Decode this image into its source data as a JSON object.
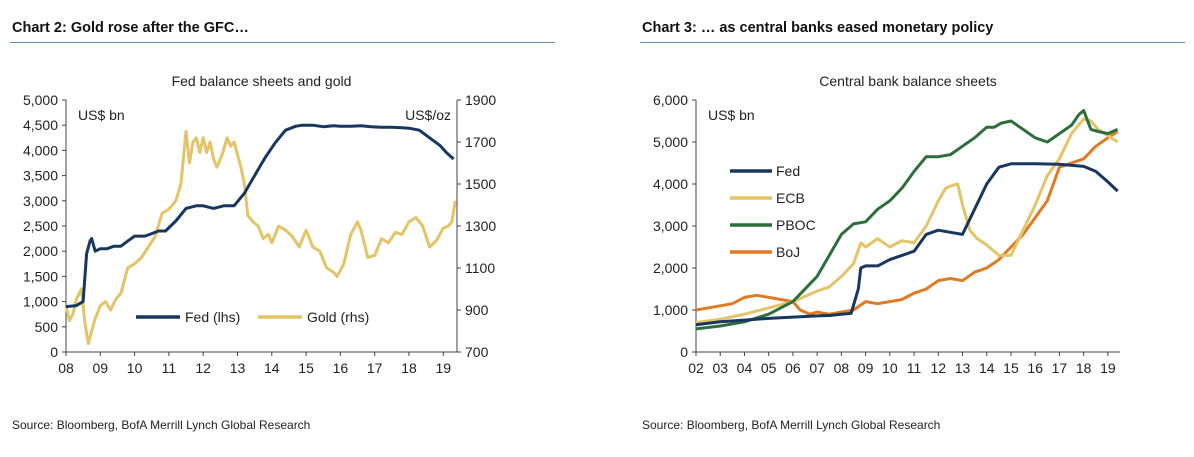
{
  "panels": [
    {
      "title": "Chart 2: Gold rose after the GFC…",
      "source": "Source: Bloomberg, BofA Merrill Lynch Global Research"
    },
    {
      "title": "Chart 3: … as central banks eased monetary policy",
      "source": "Source: Bloomberg, BofA Merrill Lynch Global Research"
    }
  ],
  "chart_data": [
    {
      "type": "line",
      "title": "Fed balance sheets and gold",
      "y_unit_left": "US$ bn",
      "y_unit_right": "US$/oz",
      "xlim": [
        2008,
        2019.4
      ],
      "x_ticks": [
        "08",
        "09",
        "10",
        "11",
        "12",
        "13",
        "14",
        "15",
        "16",
        "17",
        "18",
        "19"
      ],
      "ylim_left": [
        0,
        5000
      ],
      "y_ticks_left": [
        "0",
        "500",
        "1,000",
        "1,500",
        "2,000",
        "2,500",
        "3,000",
        "3,500",
        "4,000",
        "4,500",
        "5,000"
      ],
      "ylim_right": [
        700,
        1900
      ],
      "y_ticks_right": [
        "700",
        "900",
        "1100",
        "1300",
        "1500",
        "1700",
        "1900"
      ],
      "grid": false,
      "legend_position": "bottom-right",
      "series": [
        {
          "name": "Fed (lhs)",
          "axis": "left",
          "color": "#17375e",
          "x": [
            2008.0,
            2008.3,
            2008.5,
            2008.6,
            2008.7,
            2008.75,
            2008.85,
            2009.0,
            2009.2,
            2009.4,
            2009.6,
            2009.8,
            2010.0,
            2010.3,
            2010.5,
            2010.7,
            2010.9,
            2011.2,
            2011.5,
            2011.8,
            2012.0,
            2012.3,
            2012.6,
            2012.9,
            2013.2,
            2013.5,
            2013.8,
            2014.1,
            2014.4,
            2014.7,
            2014.9,
            2015.2,
            2015.5,
            2015.8,
            2016.0,
            2016.3,
            2016.6,
            2016.9,
            2017.2,
            2017.5,
            2017.8,
            2018.0,
            2018.3,
            2018.6,
            2018.9,
            2019.1,
            2019.3
          ],
          "values": [
            900,
            920,
            1000,
            1950,
            2200,
            2250,
            2000,
            2050,
            2050,
            2100,
            2100,
            2200,
            2300,
            2300,
            2350,
            2400,
            2400,
            2600,
            2850,
            2900,
            2900,
            2850,
            2900,
            2900,
            3150,
            3500,
            3850,
            4150,
            4400,
            4480,
            4500,
            4500,
            4470,
            4490,
            4480,
            4480,
            4490,
            4470,
            4460,
            4460,
            4450,
            4440,
            4400,
            4250,
            4100,
            3950,
            3830
          ]
        },
        {
          "name": "Gold (rhs)",
          "axis": "right",
          "color": "#e3c466",
          "x": [
            2008.0,
            2008.1,
            2008.2,
            2008.3,
            2008.45,
            2008.55,
            2008.65,
            2008.75,
            2008.85,
            2009.0,
            2009.15,
            2009.3,
            2009.45,
            2009.6,
            2009.8,
            2010.0,
            2010.2,
            2010.4,
            2010.6,
            2010.8,
            2011.0,
            2011.2,
            2011.35,
            2011.5,
            2011.6,
            2011.7,
            2011.8,
            2011.9,
            2012.0,
            2012.1,
            2012.2,
            2012.3,
            2012.4,
            2012.55,
            2012.7,
            2012.8,
            2012.9,
            2013.0,
            2013.1,
            2013.2,
            2013.3,
            2013.45,
            2013.6,
            2013.75,
            2013.9,
            2014.0,
            2014.2,
            2014.4,
            2014.6,
            2014.8,
            2015.0,
            2015.2,
            2015.4,
            2015.6,
            2015.8,
            2015.9,
            2016.1,
            2016.3,
            2016.5,
            2016.6,
            2016.8,
            2017.0,
            2017.2,
            2017.4,
            2017.6,
            2017.8,
            2018.0,
            2018.2,
            2018.4,
            2018.6,
            2018.8,
            2019.0,
            2019.15,
            2019.25,
            2019.35
          ],
          "values": [
            920,
            850,
            880,
            950,
            1000,
            840,
            740,
            800,
            860,
            920,
            940,
            900,
            950,
            980,
            1100,
            1120,
            1150,
            1200,
            1250,
            1360,
            1380,
            1420,
            1500,
            1750,
            1600,
            1700,
            1720,
            1650,
            1720,
            1650,
            1700,
            1620,
            1580,
            1640,
            1720,
            1680,
            1700,
            1640,
            1580,
            1500,
            1350,
            1320,
            1300,
            1240,
            1260,
            1220,
            1300,
            1280,
            1250,
            1200,
            1280,
            1200,
            1180,
            1100,
            1080,
            1060,
            1120,
            1260,
            1320,
            1280,
            1150,
            1160,
            1240,
            1220,
            1270,
            1260,
            1320,
            1340,
            1300,
            1200,
            1230,
            1290,
            1300,
            1320,
            1420
          ]
        }
      ]
    },
    {
      "type": "line",
      "title": "Central bank balance sheets",
      "y_unit_left": "US$ bn",
      "xlim": [
        2002,
        2019.5
      ],
      "x_ticks": [
        "02",
        "03",
        "04",
        "05",
        "06",
        "07",
        "08",
        "09",
        "10",
        "11",
        "12",
        "13",
        "14",
        "15",
        "16",
        "17",
        "18",
        "19"
      ],
      "ylim": [
        0,
        6000
      ],
      "y_ticks": [
        "0",
        "1,000",
        "2,000",
        "3,000",
        "4,000",
        "5,000",
        "6,000"
      ],
      "grid": false,
      "legend_position": "left",
      "series": [
        {
          "name": "Fed",
          "color": "#17375e",
          "x": [
            2002.0,
            2003.0,
            2004.0,
            2005.0,
            2006.0,
            2007.0,
            2007.5,
            2008.0,
            2008.4,
            2008.7,
            2008.8,
            2009.0,
            2009.5,
            2010.0,
            2010.5,
            2011.0,
            2011.5,
            2012.0,
            2012.5,
            2013.0,
            2013.5,
            2014.0,
            2014.5,
            2015.0,
            2016.0,
            2017.0,
            2018.0,
            2018.5,
            2019.0,
            2019.4
          ],
          "values": [
            650,
            720,
            760,
            800,
            830,
            860,
            870,
            900,
            920,
            1500,
            2000,
            2050,
            2050,
            2200,
            2300,
            2400,
            2800,
            2900,
            2850,
            2800,
            3400,
            4000,
            4400,
            4480,
            4480,
            4470,
            4420,
            4300,
            4050,
            3830
          ]
        },
        {
          "name": "ECB",
          "color": "#e3c466",
          "x": [
            2002.0,
            2003.0,
            2004.0,
            2005.0,
            2006.0,
            2007.0,
            2007.5,
            2008.0,
            2008.5,
            2008.8,
            2009.0,
            2009.5,
            2010.0,
            2010.5,
            2011.0,
            2011.5,
            2012.0,
            2012.3,
            2012.5,
            2012.8,
            2013.0,
            2013.3,
            2013.6,
            2014.0,
            2014.5,
            2015.0,
            2015.5,
            2016.0,
            2016.5,
            2017.0,
            2017.5,
            2018.0,
            2018.3,
            2018.6,
            2019.0,
            2019.4
          ],
          "values": [
            700,
            780,
            900,
            1050,
            1200,
            1450,
            1550,
            1800,
            2100,
            2600,
            2500,
            2700,
            2500,
            2650,
            2600,
            3000,
            3600,
            3900,
            3950,
            4000,
            3500,
            2900,
            2700,
            2550,
            2300,
            2300,
            2900,
            3500,
            4200,
            4600,
            5200,
            5550,
            5500,
            5300,
            5150,
            5000
          ]
        },
        {
          "name": "PBOC",
          "color": "#2d6e3c",
          "x": [
            2002.0,
            2003.0,
            2004.0,
            2005.0,
            2006.0,
            2007.0,
            2007.5,
            2008.0,
            2008.5,
            2009.0,
            2009.5,
            2010.0,
            2010.5,
            2011.0,
            2011.5,
            2012.0,
            2012.5,
            2013.0,
            2013.5,
            2014.0,
            2014.3,
            2014.6,
            2015.0,
            2015.5,
            2016.0,
            2016.5,
            2017.0,
            2017.5,
            2017.8,
            2018.0,
            2018.3,
            2018.6,
            2019.0,
            2019.4
          ],
          "values": [
            550,
            620,
            720,
            900,
            1200,
            1800,
            2300,
            2800,
            3050,
            3100,
            3400,
            3600,
            3900,
            4300,
            4650,
            4650,
            4700,
            4900,
            5100,
            5350,
            5350,
            5450,
            5500,
            5300,
            5100,
            5000,
            5200,
            5400,
            5650,
            5750,
            5300,
            5250,
            5200,
            5300
          ]
        },
        {
          "name": "BoJ",
          "color": "#e07a24",
          "x": [
            2002.0,
            2003.0,
            2003.5,
            2004.0,
            2004.5,
            2005.0,
            2005.5,
            2006.0,
            2006.3,
            2006.7,
            2007.0,
            2007.5,
            2008.0,
            2008.5,
            2009.0,
            2009.5,
            2010.0,
            2010.5,
            2011.0,
            2011.5,
            2012.0,
            2012.5,
            2013.0,
            2013.5,
            2014.0,
            2014.5,
            2015.0,
            2015.5,
            2016.0,
            2016.5,
            2017.0,
            2017.5,
            2018.0,
            2018.5,
            2019.0,
            2019.4
          ],
          "values": [
            1000,
            1100,
            1150,
            1300,
            1350,
            1300,
            1250,
            1200,
            1000,
            900,
            950,
            900,
            950,
            1000,
            1200,
            1150,
            1200,
            1250,
            1400,
            1500,
            1700,
            1750,
            1700,
            1900,
            2000,
            2200,
            2500,
            2800,
            3200,
            3600,
            4400,
            4500,
            4600,
            4900,
            5100,
            5250
          ]
        }
      ]
    }
  ]
}
